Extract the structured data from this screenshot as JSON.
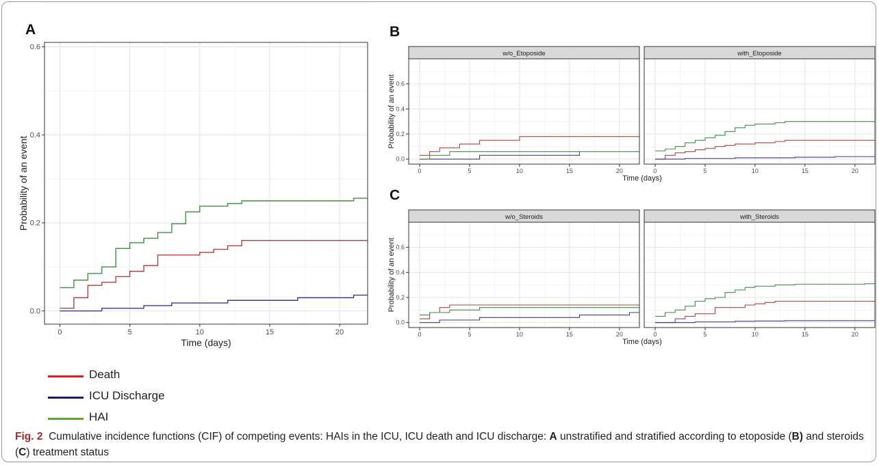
{
  "colors": {
    "death": "#b24040",
    "icu_discharge": "#3a3a8c",
    "hai": "#3f8f3f",
    "legend_death": "#e41a1c",
    "legend_icu": "#1a1a6e",
    "legend_hai": "#5aa832",
    "figlabel": "#b02a2a"
  },
  "legend": [
    {
      "label": "Death",
      "color_key": "legend_death"
    },
    {
      "label": "ICU Discharge",
      "color_key": "legend_icu"
    },
    {
      "label": "HAI",
      "color_key": "legend_hai"
    }
  ],
  "caption": {
    "fig_label": "Fig. 2",
    "text_1": "Cumulative incidence functions (CIF) of competing events: HAIs in the ICU, ICU death and ICU discharge: ",
    "bold_a": "A",
    "text_2": " unstratified and stratified according to etoposide (",
    "bold_b": "B)",
    "text_3": " and steroids (",
    "bold_c": "C",
    "text_4": ") treatment status"
  },
  "chart_data": [
    {
      "panel": "A",
      "type": "line",
      "step": true,
      "xlabel": "Time (days)",
      "ylabel": "Probability of an event",
      "xlim": [
        -1.1,
        22
      ],
      "ylim": [
        -0.03,
        0.61
      ],
      "xticks": [
        0,
        5,
        10,
        15,
        20
      ],
      "yticks": [
        0.0,
        0.2,
        0.4,
        0.6
      ],
      "ytick_labels": [
        "0.0",
        "0.2",
        "0.4",
        "0.6"
      ],
      "grid": true,
      "series": [
        {
          "key": "death",
          "x": [
            0,
            1,
            2,
            3,
            4,
            5,
            6,
            7,
            9,
            10,
            11,
            12,
            13,
            22
          ],
          "y": [
            0.006,
            0.03,
            0.058,
            0.065,
            0.078,
            0.09,
            0.103,
            0.127,
            0.127,
            0.133,
            0.14,
            0.148,
            0.16,
            0.16
          ]
        },
        {
          "key": "icu_discharge",
          "x": [
            0,
            3,
            6,
            8,
            10,
            12,
            17,
            21,
            22
          ],
          "y": [
            0.0,
            0.006,
            0.012,
            0.018,
            0.018,
            0.024,
            0.03,
            0.036,
            0.036
          ]
        },
        {
          "key": "hai",
          "x": [
            0,
            1,
            2,
            3,
            4,
            5,
            6,
            7,
            8,
            9,
            10,
            12,
            13,
            21,
            22
          ],
          "y": [
            0.053,
            0.07,
            0.085,
            0.1,
            0.142,
            0.155,
            0.165,
            0.178,
            0.198,
            0.225,
            0.238,
            0.244,
            0.25,
            0.256,
            0.256
          ]
        }
      ]
    },
    {
      "panel": "B",
      "type": "line",
      "step": true,
      "xlabel": "Time (days)",
      "ylabel": "Probability of an event",
      "xlim": [
        -1.1,
        22
      ],
      "ylim": [
        -0.04,
        0.8
      ],
      "xticks": [
        0,
        5,
        10,
        15,
        20
      ],
      "yticks": [
        0.0,
        0.2,
        0.4,
        0.6
      ],
      "ytick_labels": [
        "0.0",
        "0.2",
        "0.4",
        "0.6"
      ],
      "facets": [
        {
          "label": "w/o_Etoposide",
          "series": [
            {
              "key": "death",
              "x": [
                0,
                1,
                2,
                3,
                4,
                6,
                10,
                22
              ],
              "y": [
                0.03,
                0.06,
                0.09,
                0.09,
                0.12,
                0.15,
                0.18,
                0.18
              ]
            },
            {
              "key": "icu_discharge",
              "x": [
                0,
                6,
                16
              ],
              "y": [
                0.0,
                0.03,
                0.06
              ]
            },
            {
              "key": "hai",
              "x": [
                0,
                1,
                3,
                22
              ],
              "y": [
                0.0,
                0.03,
                0.06,
                0.06
              ]
            }
          ]
        },
        {
          "label": "with_Etoposide",
          "series": [
            {
              "key": "death",
              "x": [
                0,
                1,
                2,
                3,
                4,
                5,
                6,
                7,
                8,
                10,
                12,
                13,
                22
              ],
              "y": [
                0.0,
                0.03,
                0.05,
                0.06,
                0.075,
                0.085,
                0.1,
                0.11,
                0.12,
                0.13,
                0.14,
                0.15,
                0.15
              ]
            },
            {
              "key": "icu_discharge",
              "x": [
                0,
                3,
                8,
                14,
                18,
                22
              ],
              "y": [
                0.0,
                0.005,
                0.01,
                0.015,
                0.02,
                0.03
              ]
            },
            {
              "key": "hai",
              "x": [
                0,
                1,
                2,
                3,
                4,
                5,
                6,
                7,
                8,
                9,
                10,
                12,
                13,
                22
              ],
              "y": [
                0.065,
                0.08,
                0.1,
                0.13,
                0.15,
                0.17,
                0.19,
                0.22,
                0.25,
                0.27,
                0.28,
                0.29,
                0.3,
                0.3
              ]
            }
          ]
        }
      ]
    },
    {
      "panel": "C",
      "type": "line",
      "step": true,
      "xlabel": "Time (days)",
      "ylabel": "Probability of an event",
      "xlim": [
        -1.1,
        22
      ],
      "ylim": [
        -0.04,
        0.8
      ],
      "xticks": [
        0,
        5,
        10,
        15,
        20
      ],
      "yticks": [
        0.0,
        0.2,
        0.4,
        0.6
      ],
      "ytick_labels": [
        "0.0",
        "0.2",
        "0.4",
        "0.6"
      ],
      "facets": [
        {
          "label": "w/o_Steroids",
          "series": [
            {
              "key": "death",
              "x": [
                0,
                1,
                2,
                3,
                22
              ],
              "y": [
                0.03,
                0.08,
                0.12,
                0.14,
                0.14
              ]
            },
            {
              "key": "icu_discharge",
              "x": [
                0,
                2,
                6,
                16,
                21,
                22
              ],
              "y": [
                0.0,
                0.02,
                0.04,
                0.06,
                0.08,
                0.08
              ]
            },
            {
              "key": "hai",
              "x": [
                0,
                1,
                3,
                6,
                22
              ],
              "y": [
                0.06,
                0.08,
                0.1,
                0.12,
                0.12
              ]
            }
          ]
        },
        {
          "label": "with_Steroids",
          "series": [
            {
              "key": "death",
              "x": [
                0,
                2,
                3,
                4,
                6,
                9,
                10,
                11,
                12,
                13,
                22
              ],
              "y": [
                0.0,
                0.03,
                0.05,
                0.07,
                0.12,
                0.14,
                0.15,
                0.16,
                0.17,
                0.17,
                0.17
              ]
            },
            {
              "key": "icu_discharge",
              "x": [
                0,
                4,
                8,
                10,
                13,
                22
              ],
              "y": [
                0.0,
                0.005,
                0.01,
                0.012,
                0.015,
                0.015
              ]
            },
            {
              "key": "hai",
              "x": [
                0,
                1,
                2,
                3,
                4,
                5,
                6,
                7,
                8,
                9,
                10,
                12,
                14,
                21,
                22
              ],
              "y": [
                0.05,
                0.08,
                0.1,
                0.13,
                0.17,
                0.19,
                0.2,
                0.24,
                0.26,
                0.28,
                0.29,
                0.3,
                0.305,
                0.31,
                0.31
              ]
            }
          ]
        }
      ]
    }
  ]
}
